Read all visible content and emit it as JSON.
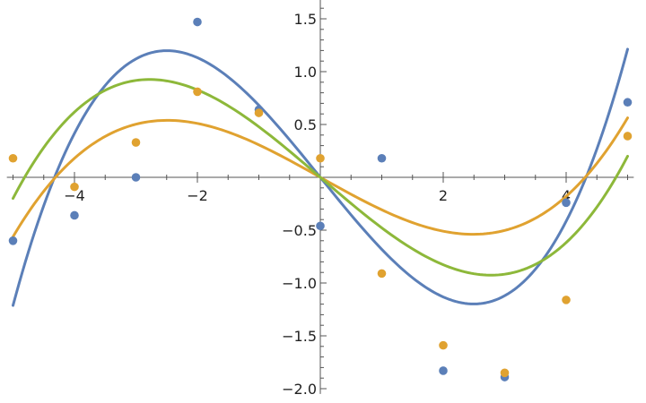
{
  "colors": {
    "blue": "#5b7fb8",
    "orange": "#e0a230",
    "green": "#8db83a",
    "axis": "#555555",
    "background": "#ffffff"
  },
  "chart_data": {
    "type": "scatter",
    "title": "",
    "xlabel": "",
    "ylabel": "",
    "xlim": [
      -5.1,
      5.1
    ],
    "ylim": [
      -2.05,
      1.7
    ],
    "grid": false,
    "x_ticks": [
      {
        "value": -4,
        "label": "−4"
      },
      {
        "value": -2,
        "label": "−2"
      },
      {
        "value": 2,
        "label": "2"
      },
      {
        "value": 4,
        "label": "4"
      }
    ],
    "y_ticks": [
      {
        "value": 1.5,
        "label": "1.5"
      },
      {
        "value": 1.0,
        "label": "1.0"
      },
      {
        "value": 0.5,
        "label": "0.5"
      },
      {
        "value": -0.5,
        "label": "−0.5"
      },
      {
        "value": -1.0,
        "label": "−1.0"
      },
      {
        "value": -1.5,
        "label": "−1.5"
      },
      {
        "value": -2.0,
        "label": "−2.0"
      }
    ],
    "points": [
      {
        "color": "#5b7fb8",
        "x": [
          -5,
          -4,
          -3,
          -2,
          -1,
          0,
          1,
          2,
          3,
          4,
          5
        ],
        "y": [
          -0.6,
          -0.36,
          0.0,
          1.47,
          0.64,
          -0.46,
          0.18,
          -1.83,
          -1.89,
          -0.24,
          0.71
        ]
      },
      {
        "color": "#e0a230",
        "x": [
          -5,
          -4,
          -3,
          -2,
          -1,
          0,
          1,
          2,
          3,
          4,
          5
        ],
        "y": [
          0.18,
          -0.09,
          0.33,
          0.81,
          0.61,
          0.18,
          -0.91,
          -1.59,
          -1.85,
          -1.16,
          0.39
        ]
      }
    ],
    "fits": [
      {
        "color": "#5b7fb8",
        "form": "a*x + b*x^3",
        "a": -0.72,
        "b": 0.0385,
        "x_range": [
          -5,
          5
        ]
      },
      {
        "color": "#e0a230",
        "form": "a*x + b*x^3",
        "a": -0.325,
        "b": 0.0175,
        "x_range": [
          -5,
          5
        ]
      },
      {
        "color": "#8db83a",
        "form": "a*x + b*x^3",
        "a": -0.5,
        "b": 0.0216,
        "x_range": [
          -5,
          5
        ]
      }
    ]
  }
}
